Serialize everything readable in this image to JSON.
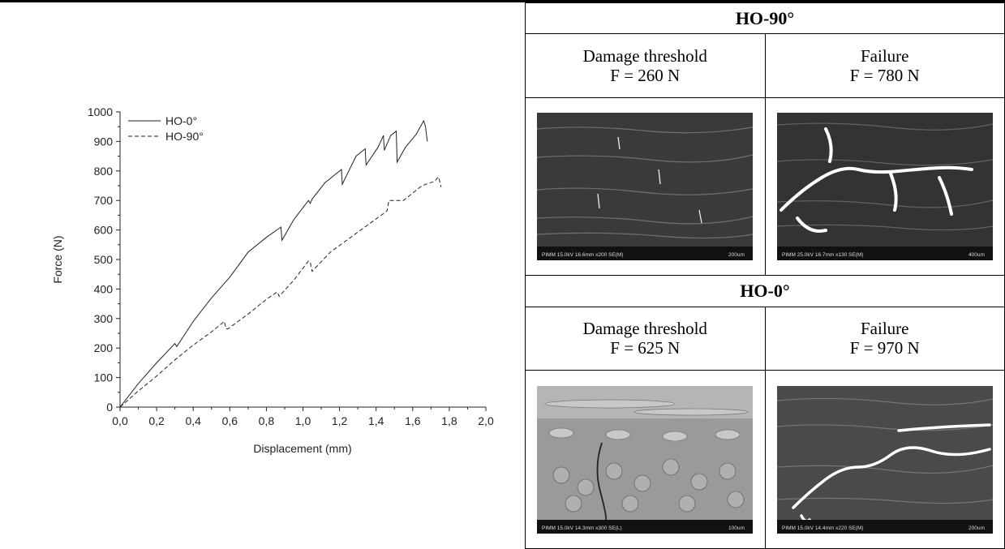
{
  "chart_data": {
    "type": "line",
    "xlabel": "Displacement (mm)",
    "ylabel": "Force (N)",
    "xlim": [
      0,
      2.0
    ],
    "ylim": [
      0,
      1000
    ],
    "xticks": [
      "0,0",
      "0,2",
      "0,4",
      "0,6",
      "0,8",
      "1,0",
      "1,2",
      "1,4",
      "1,6",
      "1,8",
      "2,0"
    ],
    "yticks": [
      "0",
      "100",
      "200",
      "300",
      "400",
      "500",
      "600",
      "700",
      "800",
      "900",
      "1000"
    ],
    "legend_position": "top-left",
    "series": [
      {
        "name": "HO-0°",
        "style": "solid",
        "x": [
          0.0,
          0.1,
          0.2,
          0.3,
          0.31,
          0.4,
          0.5,
          0.6,
          0.7,
          0.8,
          0.88,
          0.885,
          0.95,
          1.03,
          1.04,
          1.05,
          1.12,
          1.21,
          1.215,
          1.29,
          1.34,
          1.345,
          1.41,
          1.44,
          1.445,
          1.48,
          1.51,
          1.515,
          1.56,
          1.62,
          1.66,
          1.67,
          1.68
        ],
        "y": [
          0,
          80,
          150,
          215,
          205,
          290,
          370,
          440,
          525,
          575,
          610,
          565,
          635,
          700,
          690,
          705,
          760,
          805,
          755,
          850,
          875,
          820,
          880,
          920,
          870,
          920,
          935,
          830,
          880,
          925,
          970,
          950,
          900
        ]
      },
      {
        "name": "HO-90°",
        "style": "dashed",
        "x": [
          0.0,
          0.1,
          0.2,
          0.3,
          0.4,
          0.5,
          0.57,
          0.58,
          0.59,
          0.7,
          0.8,
          0.86,
          0.87,
          0.95,
          1.03,
          1.04,
          1.05,
          1.15,
          1.25,
          1.35,
          1.45,
          1.46,
          1.47,
          1.55,
          1.65,
          1.72,
          1.74,
          1.75,
          1.755
        ],
        "y": [
          0,
          55,
          105,
          160,
          210,
          255,
          290,
          265,
          265,
          315,
          365,
          390,
          375,
          430,
          495,
          490,
          460,
          525,
          570,
          615,
          660,
          665,
          700,
          700,
          750,
          765,
          780,
          760,
          745
        ]
      }
    ]
  },
  "table": {
    "sections": [
      {
        "title": "HO-90°",
        "cols": [
          {
            "condition": "Damage threshold",
            "force": "F = 260 N",
            "image_icon": "sem-micrograph"
          },
          {
            "condition": "Failure",
            "force": "F = 780 N",
            "image_icon": "sem-micrograph-cracks"
          }
        ]
      },
      {
        "title": "HO-0°",
        "cols": [
          {
            "condition": "Damage threshold",
            "force": "F = 625 N",
            "image_icon": "sem-micrograph-fibres"
          },
          {
            "condition": "Failure",
            "force": "F = 970 N",
            "image_icon": "sem-micrograph-cracks"
          }
        ]
      }
    ]
  },
  "sem_captions": {
    "s90_damage": {
      "info": "PIMM 15.0kV 16.6mm x200 SE(M)",
      "scale": "200um"
    },
    "s90_failure": {
      "info": "PIMM 25.0kV 16.7mm x130 SE(M)",
      "scale": "400um"
    },
    "s0_damage": {
      "info": "PIMM 15.0kV 14.3mm x300 SE(L)",
      "scale": "100um"
    },
    "s0_failure": {
      "info": "PIMM 15.0kV 14.4mm x220 SE(M)",
      "scale": "200um"
    }
  }
}
